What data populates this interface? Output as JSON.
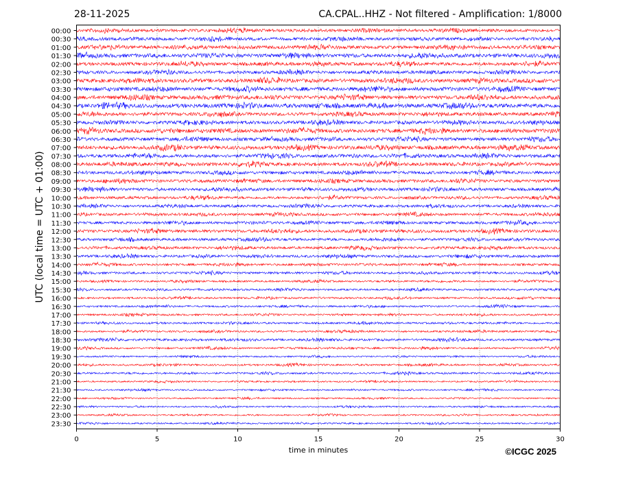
{
  "header": {
    "date": "28-11-2025",
    "station_title": "CA.CPAL..HHZ - Not filtered - Amplification: 1/8000"
  },
  "copyright": "©ICGC 2025",
  "chart_data": {
    "type": "line",
    "title_left": "28-11-2025",
    "title_right": "CA.CPAL..HHZ - Not filtered - Amplification: 1/8000",
    "xlabel": "time in minutes",
    "ylabel": "UTC (local time = UTC + 01:00)",
    "xlim": [
      0,
      30
    ],
    "xticks": [
      "0",
      "5",
      "10",
      "15",
      "20",
      "25",
      "30"
    ],
    "grid": "vertical dotted at x ticks",
    "colors": [
      "#ff0000",
      "#0000ff"
    ],
    "traces": [
      {
        "label": "00:00",
        "amplitude": 0.8
      },
      {
        "label": "00:30",
        "amplitude": 0.8
      },
      {
        "label": "01:00",
        "amplitude": 0.9
      },
      {
        "label": "01:30",
        "amplitude": 1.0
      },
      {
        "label": "02:00",
        "amplitude": 0.9
      },
      {
        "label": "02:30",
        "amplitude": 0.8
      },
      {
        "label": "03:00",
        "amplitude": 1.0
      },
      {
        "label": "03:30",
        "amplitude": 1.0
      },
      {
        "label": "04:00",
        "amplitude": 1.0
      },
      {
        "label": "04:30",
        "amplitude": 1.1
      },
      {
        "label": "05:00",
        "amplitude": 0.9
      },
      {
        "label": "05:30",
        "amplitude": 0.9
      },
      {
        "label": "06:00",
        "amplitude": 1.0
      },
      {
        "label": "06:30",
        "amplitude": 0.9
      },
      {
        "label": "07:00",
        "amplitude": 1.0
      },
      {
        "label": "07:30",
        "amplitude": 0.9
      },
      {
        "label": "08:00",
        "amplitude": 0.9
      },
      {
        "label": "08:30",
        "amplitude": 0.8
      },
      {
        "label": "09:00",
        "amplitude": 0.8
      },
      {
        "label": "09:30",
        "amplitude": 0.8
      },
      {
        "label": "10:00",
        "amplitude": 0.7
      },
      {
        "label": "10:30",
        "amplitude": 0.7
      },
      {
        "label": "11:00",
        "amplitude": 0.7
      },
      {
        "label": "11:30",
        "amplitude": 0.7
      },
      {
        "label": "12:00",
        "amplitude": 0.8
      },
      {
        "label": "12:30",
        "amplitude": 0.7
      },
      {
        "label": "13:00",
        "amplitude": 0.7
      },
      {
        "label": "13:30",
        "amplitude": 0.7
      },
      {
        "label": "14:00",
        "amplitude": 0.6
      },
      {
        "label": "14:30",
        "amplitude": 0.6
      },
      {
        "label": "15:00",
        "amplitude": 0.5
      },
      {
        "label": "15:30",
        "amplitude": 0.5
      },
      {
        "label": "16:00",
        "amplitude": 0.5
      },
      {
        "label": "16:30",
        "amplitude": 0.5
      },
      {
        "label": "17:00",
        "amplitude": 0.5
      },
      {
        "label": "17:30",
        "amplitude": 0.5
      },
      {
        "label": "18:00",
        "amplitude": 0.5
      },
      {
        "label": "18:30",
        "amplitude": 0.6
      },
      {
        "label": "19:00",
        "amplitude": 0.5
      },
      {
        "label": "19:30",
        "amplitude": 0.4
      },
      {
        "label": "20:00",
        "amplitude": 0.5
      },
      {
        "label": "20:30",
        "amplitude": 0.5
      },
      {
        "label": "21:00",
        "amplitude": 0.4
      },
      {
        "label": "21:30",
        "amplitude": 0.4
      },
      {
        "label": "22:00",
        "amplitude": 0.4
      },
      {
        "label": "22:30",
        "amplitude": 0.4
      },
      {
        "label": "23:00",
        "amplitude": 0.4
      },
      {
        "label": "23:30",
        "amplitude": 0.4
      }
    ]
  }
}
